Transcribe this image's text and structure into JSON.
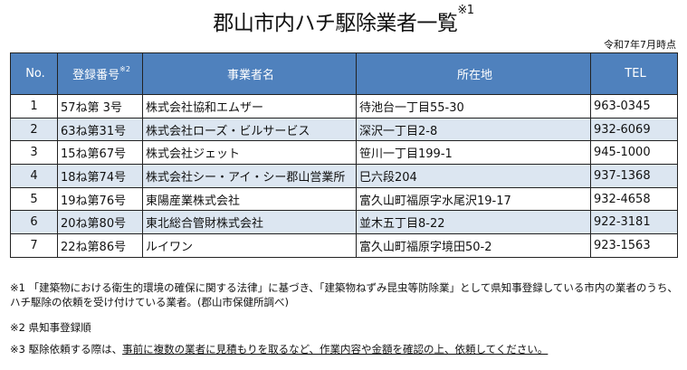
{
  "title": "郡山市内ハチ駆除業者一覧",
  "title_note_mark": "※1",
  "as_of": "令和7年7月時点",
  "colors": {
    "header_bg": "#4f81bd",
    "alt_row_bg": "#dce6f1"
  },
  "table": {
    "headers": {
      "no": "No.",
      "reg": "登録番号",
      "reg_mark": "※2",
      "name": "事業者名",
      "address": "所在地",
      "tel": "TEL"
    },
    "rows": [
      {
        "no": "1",
        "reg": "57ね第 3号",
        "name": "株式会社協和エムザー",
        "address": "待池台一丁目55-30",
        "tel": "963-0345"
      },
      {
        "no": "2",
        "reg": "63ね第31号",
        "name": "株式会社ローズ・ビルサービス",
        "address": "深沢一丁目2-8",
        "tel": "932-6069"
      },
      {
        "no": "3",
        "reg": "15ね第67号",
        "name": "株式会社ジェット",
        "address": "笹川一丁目199-1",
        "tel": "945-1000"
      },
      {
        "no": "4",
        "reg": "18ね第74号",
        "name": "株式会社シー・アイ・シー郡山営業所",
        "address": "巳六段204",
        "tel": "937-1368"
      },
      {
        "no": "5",
        "reg": "19ね第76号",
        "name": "東陽産業株式会社",
        "address": "富久山町福原字水尾沢19-17",
        "tel": "932-4658"
      },
      {
        "no": "6",
        "reg": "20ね第80号",
        "name": "東北総合管財株式会社",
        "address": "並木五丁目8-22",
        "tel": "922-3181"
      },
      {
        "no": "7",
        "reg": "22ね第86号",
        "name": "ルイワン",
        "address": "富久山町福原字境田50-2",
        "tel": "923-1563"
      }
    ]
  },
  "notes": {
    "note1": "※1 「建築物における衛生的環境の確保に関する法律」に基づき、「建築物ねずみ昆虫等防除業」として県知事登録している市内の業者のうち、ハチ駆除の依頼を受け付けている業者。(郡山市保健所調べ)",
    "note2": "※2 県知事登録順",
    "note3_prefix": "※3 駆除依頼する際は、",
    "note3_underlined": "事前に複数の業者に見積もりを取るなど、作業内容や金額を確認の上、依頼してください。"
  }
}
